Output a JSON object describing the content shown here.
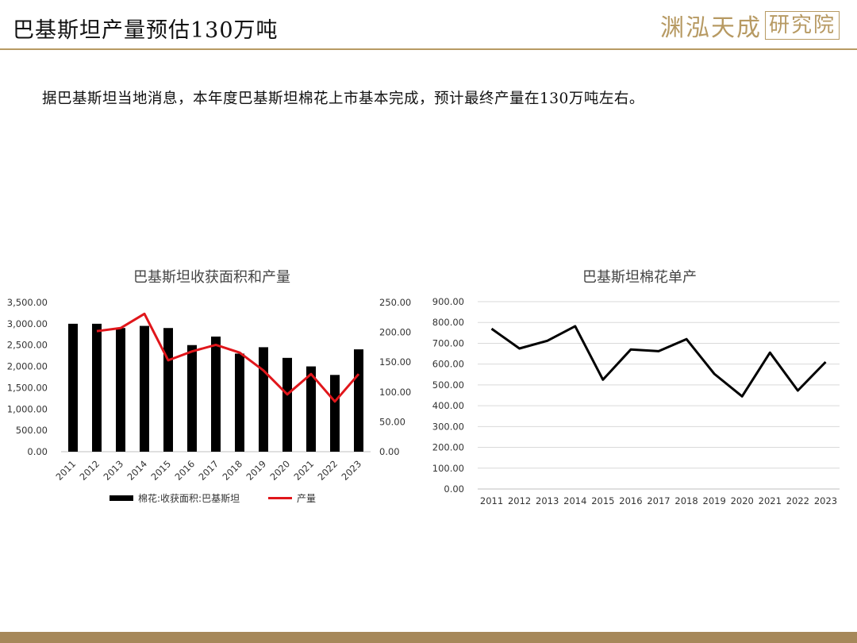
{
  "header": {
    "title": "巴基斯坦产量预估130万吨",
    "logo_main": "渊泓天成",
    "logo_box": "研究院"
  },
  "note": "据巴基斯坦当地消息，本年度巴基斯坦棉花上市基本完成，预计最终产量在130万吨左右。",
  "colors": {
    "gold": "#b79a63",
    "bar": "#000000",
    "line": "#e0161b",
    "grid": "#d9d9d9"
  },
  "chart_data": [
    {
      "type": "bar",
      "title": "巴基斯坦收获面积和产量",
      "categories": [
        "2011",
        "2012",
        "2013",
        "2014",
        "2015",
        "2016",
        "2017",
        "2018",
        "2019",
        "2020",
        "2021",
        "2022",
        "2023"
      ],
      "series": [
        {
          "name": "棉花:收获面积:巴基斯坦",
          "type": "bar",
          "axis": "left",
          "values": [
            3000,
            3000,
            2900,
            2950,
            2900,
            2500,
            2700,
            2300,
            2450,
            2200,
            2000,
            1800,
            2400
          ]
        },
        {
          "name": "产量",
          "type": "line",
          "axis": "right",
          "values": [
            null,
            202,
            207,
            231,
            153,
            168,
            179,
            166,
            136,
            96,
            130,
            84,
            130
          ]
        }
      ],
      "ylim_left": [
        0,
        3500
      ],
      "yticks_left": [
        "0.00",
        "500.00",
        "1,000.00",
        "1,500.00",
        "2,000.00",
        "2,500.00",
        "3,000.00",
        "3,500.00"
      ],
      "ylim_right": [
        0,
        250
      ],
      "yticks_right": [
        "0.00",
        "50.00",
        "100.00",
        "150.00",
        "200.00",
        "250.00"
      ],
      "legend": "bottom"
    },
    {
      "type": "line",
      "title": "巴基斯坦棉花单产",
      "categories": [
        "2011",
        "2012",
        "2013",
        "2014",
        "2015",
        "2016",
        "2017",
        "2018",
        "2019",
        "2020",
        "2021",
        "2022",
        "2023"
      ],
      "series": [
        {
          "values": [
            770,
            675,
            712,
            782,
            525,
            670,
            662,
            720,
            553,
            445,
            655,
            473,
            610
          ]
        }
      ],
      "ylim": [
        0,
        900
      ],
      "yticks": [
        "0.00",
        "100.00",
        "200.00",
        "300.00",
        "400.00",
        "500.00",
        "600.00",
        "700.00",
        "800.00",
        "900.00"
      ],
      "grid": true
    }
  ]
}
